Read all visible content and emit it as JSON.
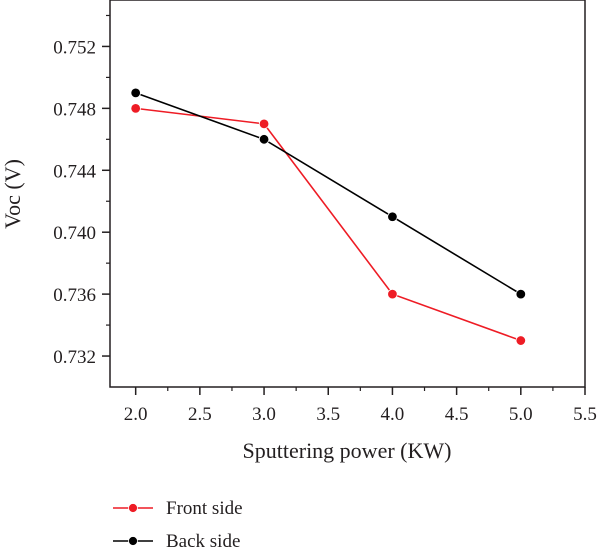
{
  "chart_data": {
    "type": "line",
    "xlabel": "Sputtering power (KW)",
    "ylabel": "Voc (V)",
    "xlim": [
      1.8,
      5.5
    ],
    "ylim": [
      0.73,
      0.755
    ],
    "x_ticks": [
      "2.0",
      "2.5",
      "3.0",
      "3.5",
      "4.0",
      "4.5",
      "5.0",
      "5.5"
    ],
    "y_ticks": [
      "0.732",
      "0.736",
      "0.740",
      "0.744",
      "0.748",
      "0.752"
    ],
    "grid": false,
    "legend_position": "bottom-left",
    "x": [
      2.0,
      3.0,
      4.0,
      5.0
    ],
    "series": [
      {
        "name": "Front side",
        "color": "#ee1c25",
        "values": [
          0.748,
          0.747,
          0.736,
          0.733
        ]
      },
      {
        "name": "Back side",
        "color": "#000000",
        "values": [
          0.749,
          0.746,
          0.741,
          0.736
        ]
      }
    ]
  }
}
